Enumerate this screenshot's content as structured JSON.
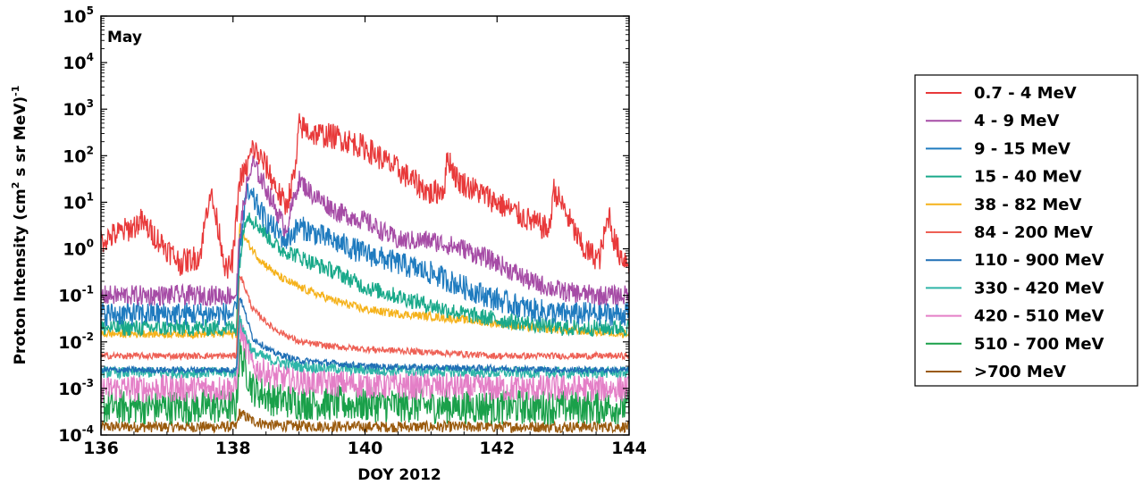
{
  "chart_data": {
    "type": "line",
    "title": "",
    "panel_label": "May",
    "xlabel": "DOY 2012",
    "ylabel": "Proton Intensity (cm² s sr MeV)⁻¹",
    "ylabel_parts": {
      "a": "Proton Intensity (cm",
      "b": "2",
      "c": "  s sr MeV)",
      "d": "-1"
    },
    "xlim": [
      136,
      144
    ],
    "ylim": [
      0.0001,
      100000
    ],
    "yscale": "log",
    "grid": false,
    "legend_position": "right, outside plot",
    "x_ticks": [
      {
        "value": 136,
        "label": "136"
      },
      {
        "value": 138,
        "label": "138"
      },
      {
        "value": 140,
        "label": "140"
      },
      {
        "value": 142,
        "label": "142"
      },
      {
        "value": 144,
        "label": "144"
      }
    ],
    "y_ticks": [
      {
        "value": 0.0001,
        "base": "10",
        "exp": "-4"
      },
      {
        "value": 0.001,
        "base": "10",
        "exp": "-3"
      },
      {
        "value": 0.01,
        "base": "10",
        "exp": "-2"
      },
      {
        "value": 0.1,
        "base": "10",
        "exp": "-1"
      },
      {
        "value": 1,
        "base": "10",
        "exp": "0"
      },
      {
        "value": 10,
        "base": "10",
        "exp": "1"
      },
      {
        "value": 100,
        "base": "10",
        "exp": "2"
      },
      {
        "value": 1000,
        "base": "10",
        "exp": "3"
      },
      {
        "value": 10000,
        "base": "10",
        "exp": "4"
      },
      {
        "value": 100000,
        "base": "10",
        "exp": "5"
      }
    ],
    "series": [
      {
        "name": "0.7 - 4 MeV",
        "color": "#e8393a",
        "noise": 0.28,
        "x": [
          136.0,
          136.5,
          136.6,
          136.8,
          137.0,
          137.2,
          137.5,
          137.65,
          137.8,
          137.9,
          138.0,
          138.1,
          138.2,
          138.3,
          138.5,
          138.7,
          138.8,
          138.95,
          139.0,
          139.2,
          139.6,
          140.0,
          140.5,
          141.0,
          141.2,
          141.25,
          141.4,
          142.0,
          142.5,
          142.8,
          142.85,
          143.0,
          143.3,
          143.55,
          143.7,
          143.75,
          143.85,
          144.0
        ],
        "y": [
          1.5,
          3.0,
          4.0,
          2.0,
          1.0,
          0.5,
          0.7,
          18.0,
          2.0,
          0.3,
          0.6,
          30.0,
          50.0,
          150.0,
          60.0,
          15.0,
          8.0,
          50.0,
          450.0,
          300.0,
          250.0,
          150.0,
          50.0,
          15.0,
          20.0,
          100.0,
          30.0,
          10.0,
          4.0,
          2.5,
          20.0,
          8.0,
          1.0,
          0.6,
          6.0,
          2.0,
          0.8,
          0.5
        ]
      },
      {
        "name": "4 - 9 MeV",
        "color": "#a64ca6",
        "noise": 0.22,
        "x": [
          136.0,
          138.05,
          138.1,
          138.2,
          138.3,
          138.5,
          138.8,
          139.0,
          139.2,
          139.6,
          140.0,
          140.5,
          141.0,
          141.5,
          142.0,
          142.5,
          143.0,
          143.5,
          144.0
        ],
        "y": [
          0.1,
          0.1,
          2.0,
          20.0,
          70.0,
          20.0,
          2.5,
          30.0,
          15.0,
          6.0,
          4.0,
          1.5,
          1.5,
          1.0,
          0.5,
          0.2,
          0.12,
          0.1,
          0.1
        ]
      },
      {
        "name": "9 - 15 MeV",
        "color": "#1f7bbf",
        "noise": 0.26,
        "x": [
          136.0,
          138.05,
          138.1,
          138.2,
          138.3,
          138.5,
          138.8,
          139.0,
          139.5,
          140.0,
          141.0,
          141.5,
          142.0,
          142.5,
          143.0,
          144.0
        ],
        "y": [
          0.04,
          0.04,
          1.0,
          15.0,
          12.0,
          4.0,
          1.5,
          3.0,
          1.5,
          0.8,
          0.3,
          0.15,
          0.08,
          0.05,
          0.04,
          0.04
        ]
      },
      {
        "name": "15 - 40 MeV",
        "color": "#19a98a",
        "noise": 0.18,
        "x": [
          136.0,
          138.05,
          138.1,
          138.2,
          138.4,
          138.7,
          138.9,
          139.2,
          139.6,
          140.0,
          141.0,
          141.5,
          142.0,
          143.0,
          144.0
        ],
        "y": [
          0.02,
          0.02,
          0.5,
          6.0,
          3.0,
          1.0,
          0.8,
          0.5,
          0.3,
          0.15,
          0.06,
          0.04,
          0.03,
          0.02,
          0.02
        ]
      },
      {
        "name": "38 - 82 MeV",
        "color": "#f5b21b",
        "noise": 0.09,
        "x": [
          136.0,
          138.05,
          138.1,
          138.2,
          138.4,
          138.7,
          139.0,
          139.5,
          140.0,
          140.5,
          141.0,
          141.5,
          142.0,
          142.5,
          143.0,
          144.0
        ],
        "y": [
          0.015,
          0.015,
          3.0,
          1.5,
          0.6,
          0.25,
          0.15,
          0.08,
          0.05,
          0.04,
          0.035,
          0.03,
          0.025,
          0.02,
          0.018,
          0.015
        ]
      },
      {
        "name": "84 - 200 MeV",
        "color": "#ee6055",
        "noise": 0.07,
        "x": [
          136.0,
          138.05,
          138.1,
          138.3,
          138.6,
          139.0,
          139.5,
          140.0,
          141.0,
          142.0,
          143.0,
          144.0
        ],
        "y": [
          0.005,
          0.005,
          0.3,
          0.05,
          0.02,
          0.01,
          0.008,
          0.007,
          0.006,
          0.005,
          0.005,
          0.005
        ]
      },
      {
        "name": "110 - 900 MeV",
        "color": "#1f6fb5",
        "noise": 0.07,
        "x": [
          136.0,
          138.05,
          138.1,
          138.3,
          138.6,
          139.0,
          139.5,
          140.0,
          141.0,
          142.0,
          143.0,
          144.0
        ],
        "y": [
          0.0025,
          0.0025,
          0.1,
          0.012,
          0.006,
          0.004,
          0.0035,
          0.003,
          0.0028,
          0.0027,
          0.0025,
          0.0025
        ]
      },
      {
        "name": "330 - 420 MeV",
        "color": "#2fb5a8",
        "noise": 0.12,
        "x": [
          136.0,
          138.05,
          138.1,
          138.3,
          138.6,
          139.0,
          140.0,
          142.0,
          144.0
        ],
        "y": [
          0.0022,
          0.0022,
          0.03,
          0.006,
          0.004,
          0.003,
          0.0025,
          0.0022,
          0.0022
        ]
      },
      {
        "name": "420 - 510 MeV",
        "color": "#e47fc7",
        "noise": 0.3,
        "x": [
          136.0,
          138.05,
          138.1,
          138.3,
          138.6,
          139.0,
          140.0,
          142.0,
          144.0
        ],
        "y": [
          0.001,
          0.001,
          0.02,
          0.003,
          0.0018,
          0.0014,
          0.0012,
          0.001,
          0.001
        ]
      },
      {
        "name": "510 - 700 MeV",
        "color": "#1aa04a",
        "noise": 0.38,
        "x": [
          136.0,
          138.05,
          138.1,
          138.3,
          138.6,
          139.0,
          140.0,
          142.0,
          144.0
        ],
        "y": [
          0.0004,
          0.0004,
          0.006,
          0.001,
          0.0006,
          0.0005,
          0.00045,
          0.0004,
          0.0004
        ]
      },
      {
        "name": ">700 MeV",
        "color": "#9a5a0d",
        "noise": 0.12,
        "x": [
          136.0,
          138.05,
          138.1,
          138.3,
          138.6,
          140.0,
          144.0
        ],
        "y": [
          0.00015,
          0.00015,
          0.0003,
          0.0002,
          0.00016,
          0.00015,
          0.00015
        ]
      }
    ]
  }
}
